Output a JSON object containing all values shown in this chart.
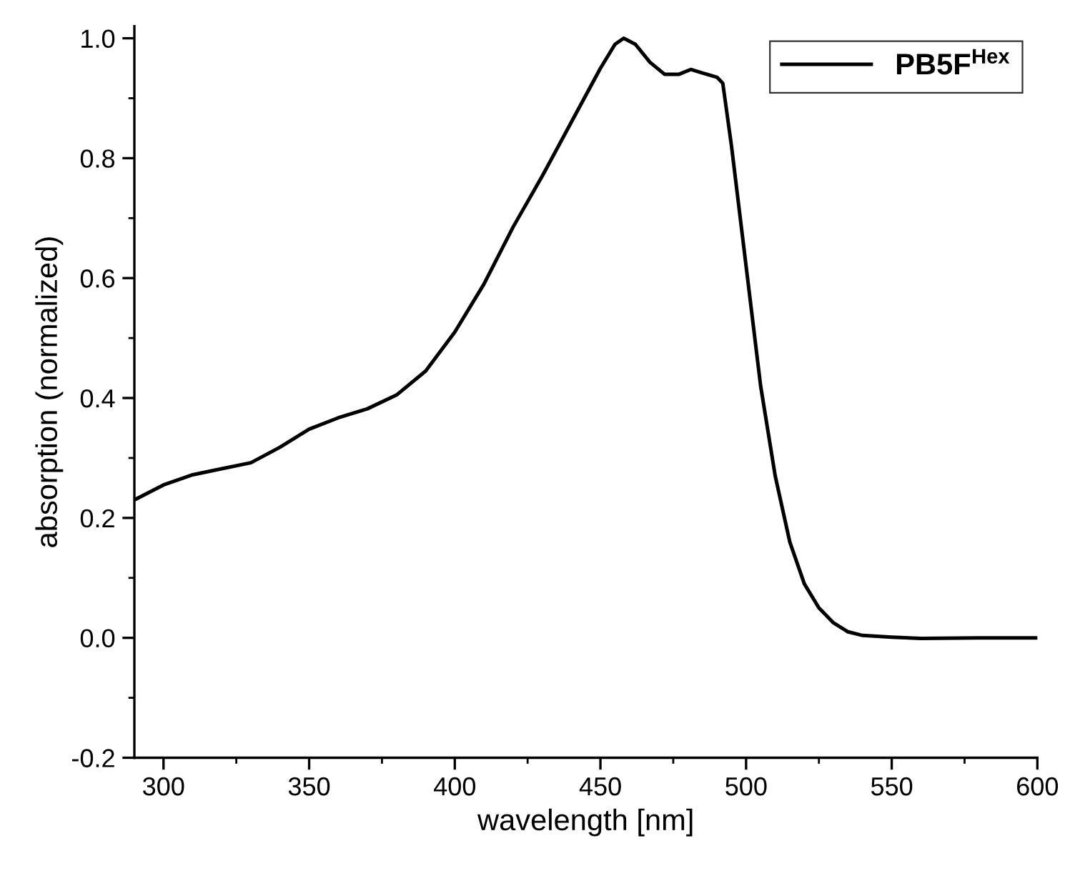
{
  "chart_data": {
    "type": "line",
    "xlabel": "wavelength [nm]",
    "ylabel": "absorption (normalized)",
    "x": [
      290,
      300,
      310,
      320,
      330,
      340,
      350,
      360,
      370,
      380,
      390,
      400,
      410,
      420,
      430,
      440,
      450,
      455,
      458,
      462,
      467,
      472,
      477,
      481,
      485,
      490,
      492,
      495,
      500,
      505,
      510,
      515,
      520,
      525,
      530,
      535,
      540,
      550,
      560,
      580,
      600
    ],
    "series": [
      {
        "name": "PB5F$^{Hex}$",
        "color": "#000000",
        "values": [
          0.23,
          0.255,
          0.272,
          0.282,
          0.292,
          0.318,
          0.348,
          0.367,
          0.382,
          0.405,
          0.445,
          0.51,
          0.59,
          0.685,
          0.77,
          0.86,
          0.95,
          0.99,
          1.0,
          0.99,
          0.96,
          0.94,
          0.94,
          0.948,
          0.942,
          0.935,
          0.925,
          0.82,
          0.62,
          0.42,
          0.27,
          0.16,
          0.09,
          0.05,
          0.025,
          0.01,
          0.004,
          0.001,
          -0.001,
          0.0,
          0.0
        ]
      }
    ],
    "xlim": [
      290,
      600
    ],
    "ylim": [
      -0.2,
      1.02
    ],
    "xticks": [
      300,
      350,
      400,
      450,
      500,
      550,
      600
    ],
    "yticks": [
      -0.2,
      {
        "value": 0,
        "label": "0.0"
      },
      0.2,
      0.4,
      0.6,
      0.8,
      {
        "value": 1,
        "label": "1.0"
      }
    ],
    "legend": "top right",
    "grid": false,
    "marker": "none",
    "line_style": "solid"
  }
}
